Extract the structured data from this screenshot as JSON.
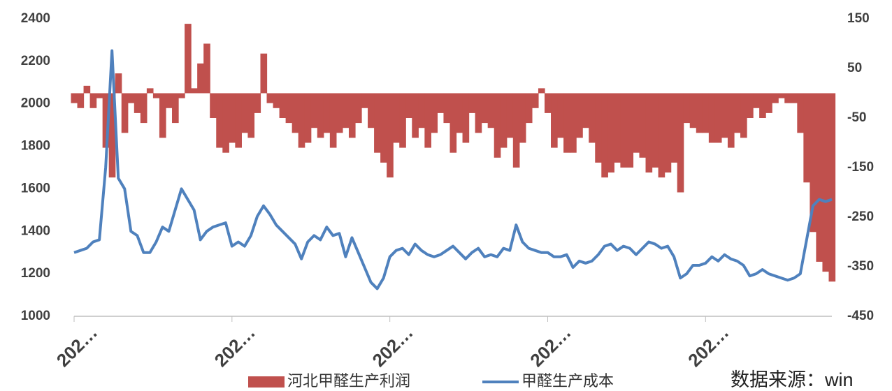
{
  "chart_data": {
    "type": "bar-line",
    "categories": [
      "202…",
      null,
      null,
      null,
      null,
      null,
      null,
      null,
      null,
      null,
      null,
      null,
      null,
      null,
      null,
      null,
      null,
      null,
      null,
      null,
      null,
      null,
      null,
      null,
      null,
      "202…",
      null,
      null,
      null,
      null,
      null,
      null,
      null,
      null,
      null,
      null,
      null,
      null,
      null,
      null,
      null,
      null,
      null,
      null,
      null,
      null,
      null,
      null,
      null,
      null,
      "202…",
      null,
      null,
      null,
      null,
      null,
      null,
      null,
      null,
      null,
      null,
      null,
      null,
      null,
      null,
      null,
      null,
      null,
      null,
      null,
      null,
      null,
      null,
      null,
      null,
      "202…",
      null,
      null,
      null,
      null,
      null,
      null,
      null,
      null,
      null,
      null,
      null,
      null,
      null,
      null,
      null,
      null,
      null,
      null,
      null,
      null,
      null,
      null,
      null,
      null,
      "202…",
      null,
      null,
      null,
      null,
      null,
      null,
      null,
      null,
      null,
      null,
      null,
      null,
      null,
      null,
      null,
      null,
      null,
      null,
      null,
      null
    ],
    "series": [
      {
        "name": "河北甲醛生产利润",
        "type": "bar",
        "axis": "y2",
        "color": "#c0504d",
        "values": [
          -20,
          -30,
          15,
          -30,
          -10,
          -110,
          -170,
          40,
          -80,
          -20,
          -40,
          -60,
          10,
          -10,
          -90,
          -30,
          -60,
          -10,
          140,
          10,
          60,
          100,
          -50,
          -110,
          -120,
          -100,
          -110,
          -80,
          -90,
          -40,
          80,
          -20,
          -30,
          -50,
          -60,
          -80,
          -110,
          -100,
          -70,
          -90,
          -80,
          -110,
          -80,
          -70,
          -90,
          -60,
          -30,
          -70,
          -120,
          -140,
          -170,
          -100,
          -110,
          -50,
          -90,
          -70,
          -110,
          -80,
          -40,
          -60,
          -120,
          -80,
          -100,
          -40,
          -80,
          -60,
          -70,
          -130,
          -110,
          -90,
          -150,
          -100,
          -60,
          -30,
          10,
          -40,
          -110,
          -90,
          -120,
          -120,
          -90,
          -70,
          -100,
          -140,
          -170,
          -160,
          -140,
          -150,
          -150,
          -120,
          -130,
          -160,
          -150,
          -170,
          -160,
          -140,
          -200,
          -60,
          -70,
          -80,
          -80,
          -100,
          -100,
          -90,
          -110,
          -80,
          -90,
          -50,
          -30,
          -50,
          -40,
          -20,
          -10,
          -20,
          -20,
          -80,
          -180,
          -280,
          -340,
          -360,
          -380
        ]
      },
      {
        "name": "甲醛生产成本",
        "type": "line",
        "axis": "y",
        "color": "#4f81bd",
        "values": [
          1300,
          1310,
          1320,
          1350,
          1360,
          1700,
          2250,
          1650,
          1600,
          1400,
          1380,
          1300,
          1300,
          1350,
          1420,
          1400,
          1500,
          1600,
          1550,
          1500,
          1360,
          1400,
          1420,
          1430,
          1440,
          1330,
          1350,
          1330,
          1380,
          1470,
          1520,
          1480,
          1430,
          1400,
          1370,
          1340,
          1270,
          1350,
          1380,
          1360,
          1420,
          1380,
          1390,
          1280,
          1370,
          1300,
          1230,
          1160,
          1130,
          1180,
          1280,
          1310,
          1320,
          1290,
          1340,
          1310,
          1290,
          1280,
          1290,
          1310,
          1330,
          1300,
          1270,
          1300,
          1320,
          1280,
          1290,
          1280,
          1320,
          1310,
          1430,
          1350,
          1320,
          1310,
          1300,
          1300,
          1280,
          1280,
          1290,
          1230,
          1260,
          1250,
          1260,
          1290,
          1330,
          1340,
          1310,
          1330,
          1320,
          1290,
          1320,
          1350,
          1340,
          1320,
          1330,
          1280,
          1180,
          1200,
          1240,
          1240,
          1250,
          1280,
          1260,
          1290,
          1270,
          1260,
          1240,
          1190,
          1200,
          1220,
          1200,
          1190,
          1180,
          1170,
          1180,
          1200,
          1360,
          1520,
          1550,
          1540,
          1550
        ]
      }
    ],
    "ylim": [
      1000,
      2400
    ],
    "yticks": [
      1000,
      1200,
      1400,
      1600,
      1800,
      2000,
      2200,
      2400
    ],
    "y2lim": [
      -450,
      150
    ],
    "y2ticks": [
      -450,
      -350,
      -250,
      -150,
      -50,
      50,
      150
    ],
    "annotation": "数据来源：win"
  }
}
